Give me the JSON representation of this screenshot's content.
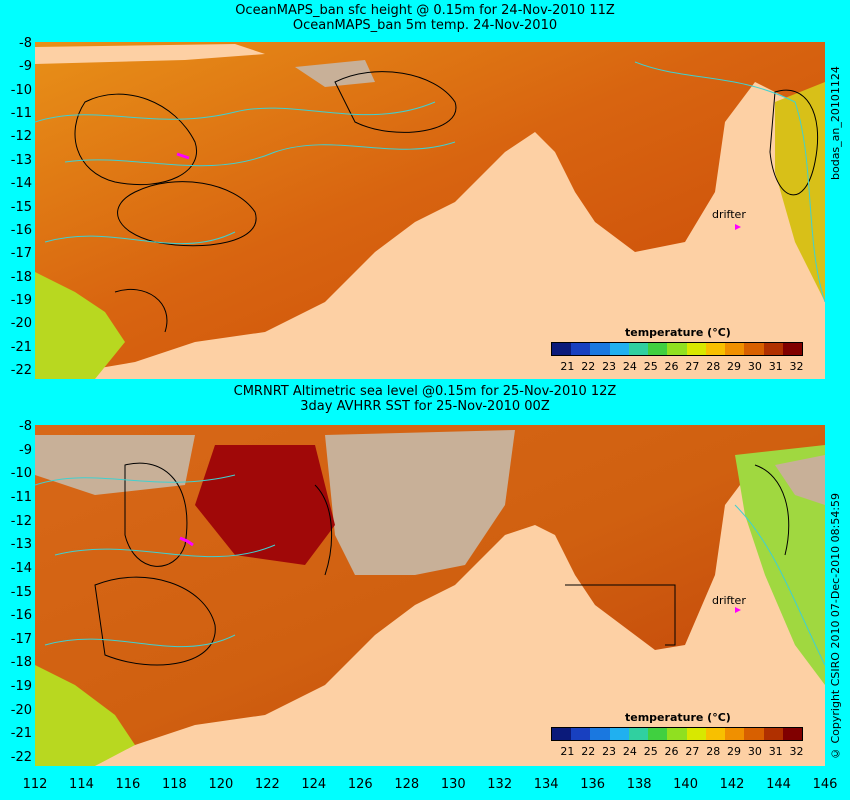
{
  "top": {
    "title_line1": "OceanMAPS_ban sfc height @ 0.15m for 24-Nov-2010 11Z",
    "title_line2": "OceanMAPS_ban 5m temp. 24-Nov-2010",
    "side_label": "bodas_an_20101124",
    "legend_title": "temperature (°C)",
    "drifter_label": "drifter"
  },
  "bottom": {
    "title_line1": "CMRNRT Altimetric sea level  @0.15m  for 25-Nov-2010 12Z",
    "title_line2": "3day AVHRR SST for 25-Nov-2010 00Z",
    "side_label": "© Copyright CSIRO 2010    07-Dec-2010 08:54:59",
    "legend_title": "temperature (°C)",
    "drifter_label": "drifter"
  },
  "y_ticks": [
    "-8",
    "-9",
    "-10",
    "-11",
    "-12",
    "-13",
    "-14",
    "-15",
    "-16",
    "-17",
    "-18",
    "-19",
    "-20",
    "-21",
    "-22"
  ],
  "x_ticks": [
    "112",
    "114",
    "116",
    "118",
    "120",
    "122",
    "124",
    "126",
    "128",
    "130",
    "132",
    "134",
    "136",
    "138",
    "140",
    "142",
    "144",
    "146"
  ],
  "colorbar": {
    "labels": [
      "21",
      "22",
      "23",
      "24",
      "25",
      "26",
      "27",
      "28",
      "29",
      "30",
      "31",
      "32"
    ],
    "colors": [
      "#0b1a7a",
      "#1840c0",
      "#1a78e0",
      "#20b0f0",
      "#30d0a0",
      "#40d040",
      "#90e020",
      "#d8e800",
      "#f8c000",
      "#f09000",
      "#d86000",
      "#b03000",
      "#800000"
    ]
  },
  "colors": {
    "background": "#00ffff",
    "land": "#fdd0a4",
    "no_data": "#c8b098",
    "sea_hot": "#c04008",
    "contour_cyan": "#40d0d0",
    "drifter": "#ff00ff"
  }
}
